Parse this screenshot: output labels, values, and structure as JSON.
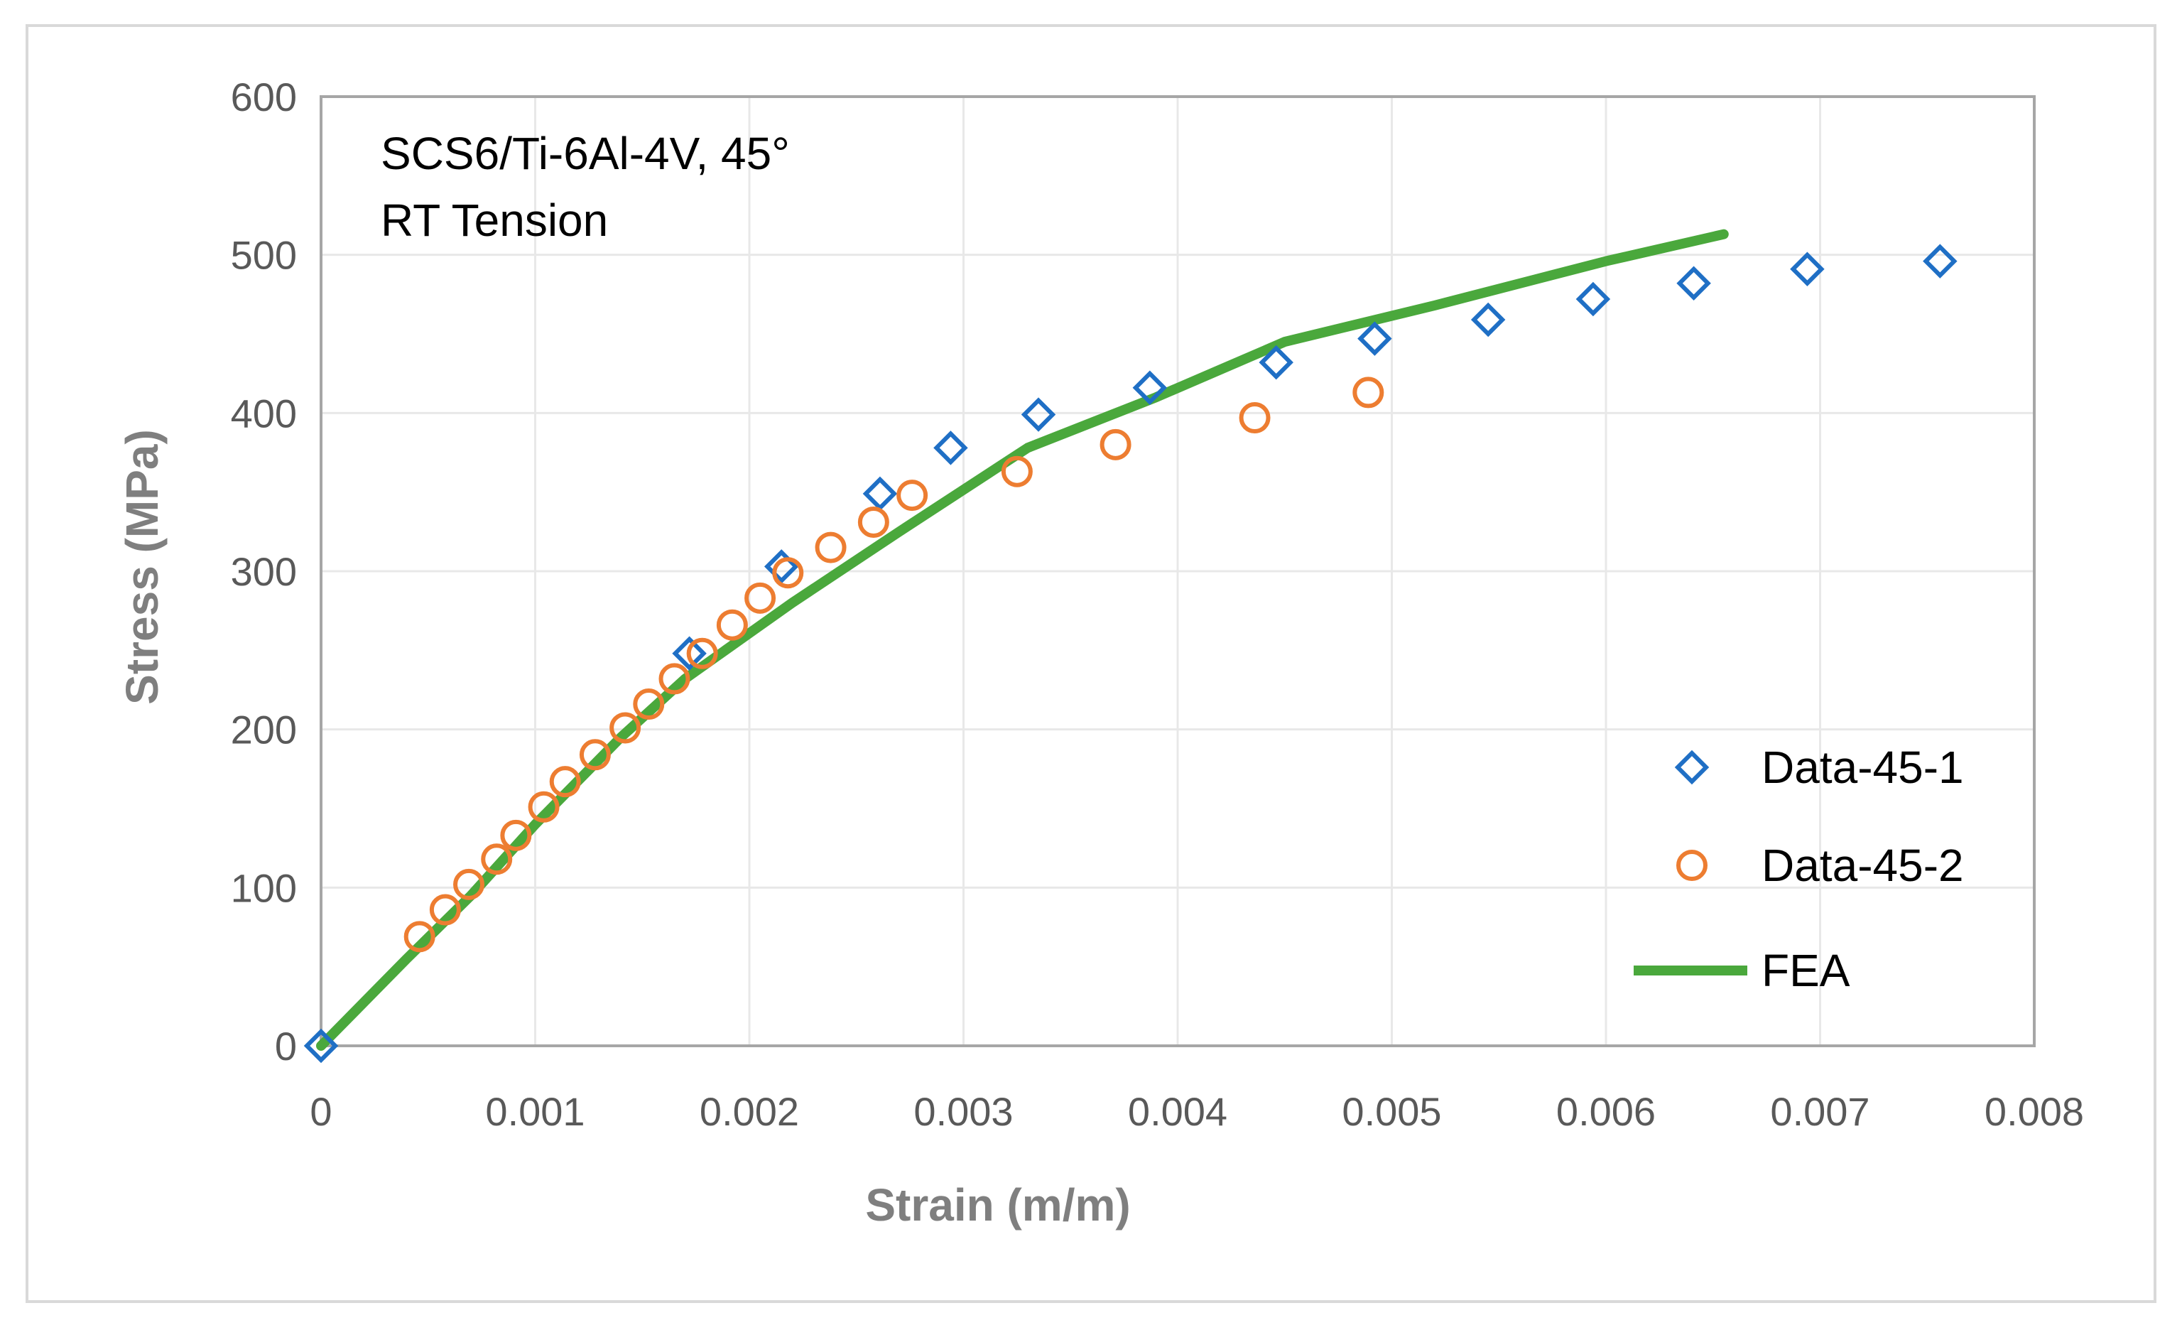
{
  "chart_data": {
    "type": "scatter",
    "title": "",
    "annotation": [
      "SCS6/Ti-6Al-4V, 45°",
      "RT Tension"
    ],
    "xlabel": "Strain (m/m)",
    "ylabel": "Stress (MPa)",
    "xlim": [
      0,
      0.008
    ],
    "ylim": [
      0,
      600
    ],
    "x_ticks": [
      0,
      0.001,
      0.002,
      0.003,
      0.004,
      0.005,
      0.006,
      0.007,
      0.008
    ],
    "x_tick_labels": [
      "0",
      "0.001",
      "0.002",
      "0.003",
      "0.004",
      "0.005",
      "0.006",
      "0.007",
      "0.008"
    ],
    "y_ticks": [
      0,
      100,
      200,
      300,
      400,
      500,
      600
    ],
    "y_tick_labels": [
      "0",
      "100",
      "200",
      "300",
      "400",
      "500",
      "600"
    ],
    "grid": true,
    "legend_position": "right",
    "series": [
      {
        "name": "Data-45-1",
        "type": "scatter",
        "marker": "diamond",
        "color": "#1f6fc5",
        "x": [
          0,
          0.00172,
          0.00215,
          0.00261,
          0.00294,
          0.00335,
          0.00387,
          0.00446,
          0.00492,
          0.00545,
          0.00594,
          0.00641,
          0.00694,
          0.00756
        ],
        "y": [
          0,
          248,
          303,
          349,
          378,
          399,
          416,
          432,
          447,
          459,
          472,
          482,
          491,
          496
        ]
      },
      {
        "name": "Data-45-2",
        "type": "scatter",
        "marker": "circle",
        "color": "#ed7d31",
        "x": [
          0.00046,
          0.00058,
          0.00069,
          0.00082,
          0.00091,
          0.00104,
          0.00114,
          0.00128,
          0.00142,
          0.00153,
          0.00165,
          0.00178,
          0.00192,
          0.00205,
          0.00218,
          0.00238,
          0.00258,
          0.00276,
          0.00325,
          0.00371,
          0.00436,
          0.00489
        ],
        "y": [
          69,
          86,
          102,
          118,
          133,
          151,
          167,
          184,
          201,
          216,
          232,
          248,
          266,
          283,
          299,
          315,
          331,
          348,
          363,
          380,
          397,
          413
        ]
      },
      {
        "name": "FEA",
        "type": "line",
        "color": "#4aa83c",
        "x": [
          0,
          0.0004,
          0.0007,
          0.001,
          0.0014,
          0.0017,
          0.0022,
          0.0027,
          0.0033,
          0.0039,
          0.0045,
          0.0052,
          0.006,
          0.00655
        ],
        "y": [
          0,
          55,
          95,
          140,
          195,
          232,
          280,
          325,
          378,
          410,
          445,
          468,
          496,
          513
        ]
      }
    ]
  }
}
